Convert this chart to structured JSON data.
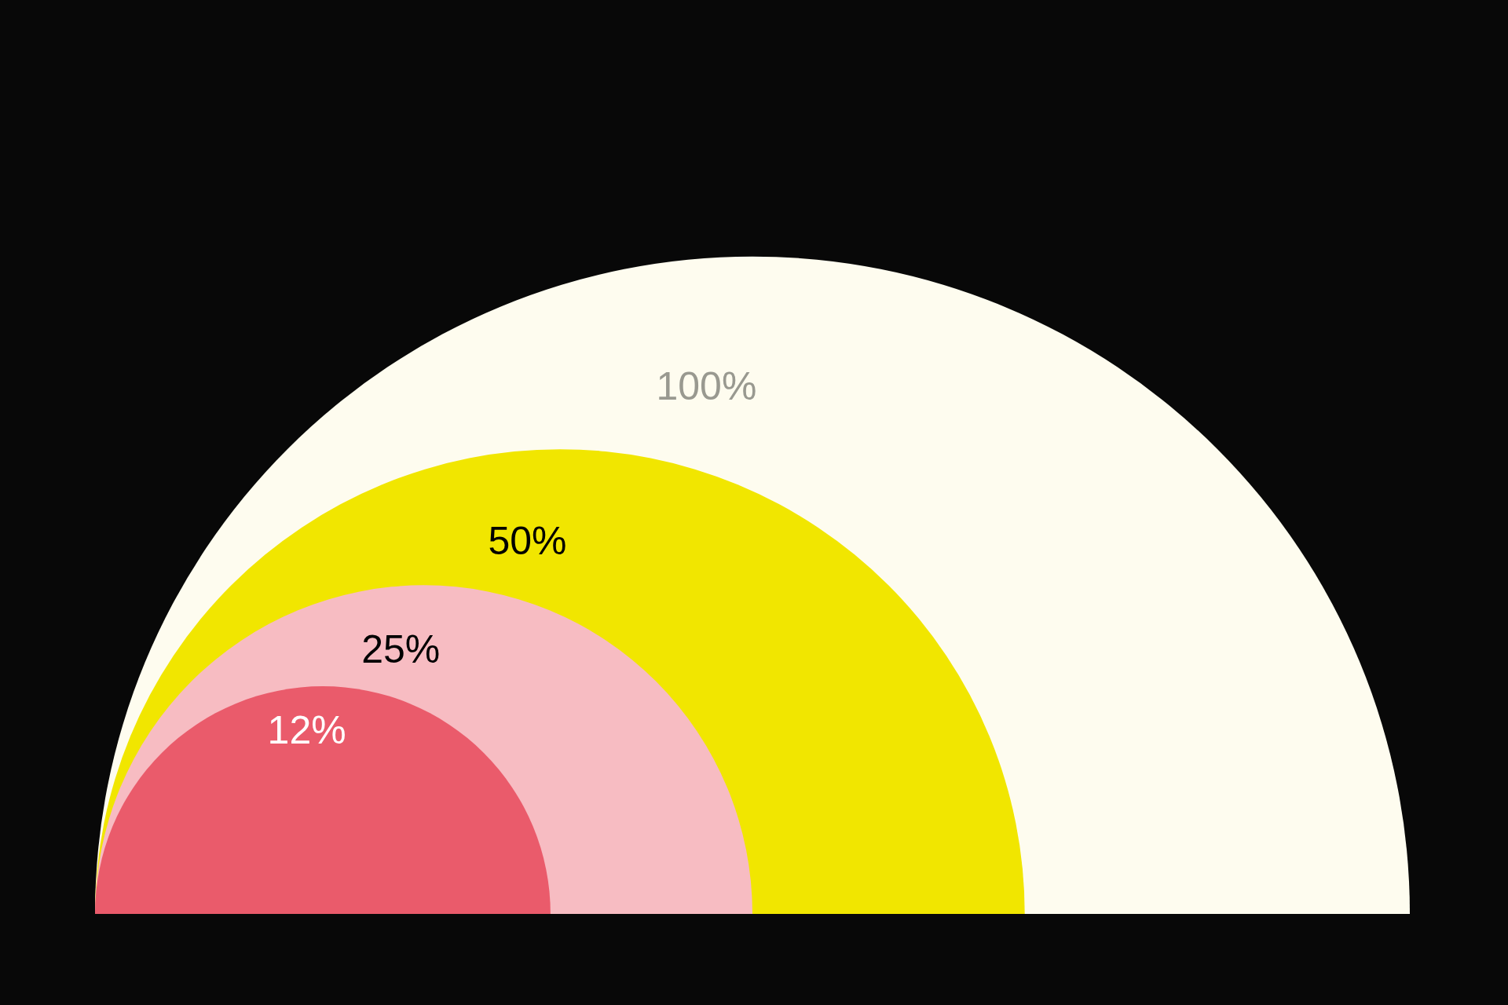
{
  "chart_data": {
    "type": "other",
    "values": [
      100,
      50,
      25,
      12
    ],
    "value_labels": [
      "100%",
      "50%",
      "25%",
      "12%"
    ],
    "colors": [
      "#fefcef",
      "#f1e600",
      "#f7bcc2",
      "#ea5b6b"
    ]
  }
}
